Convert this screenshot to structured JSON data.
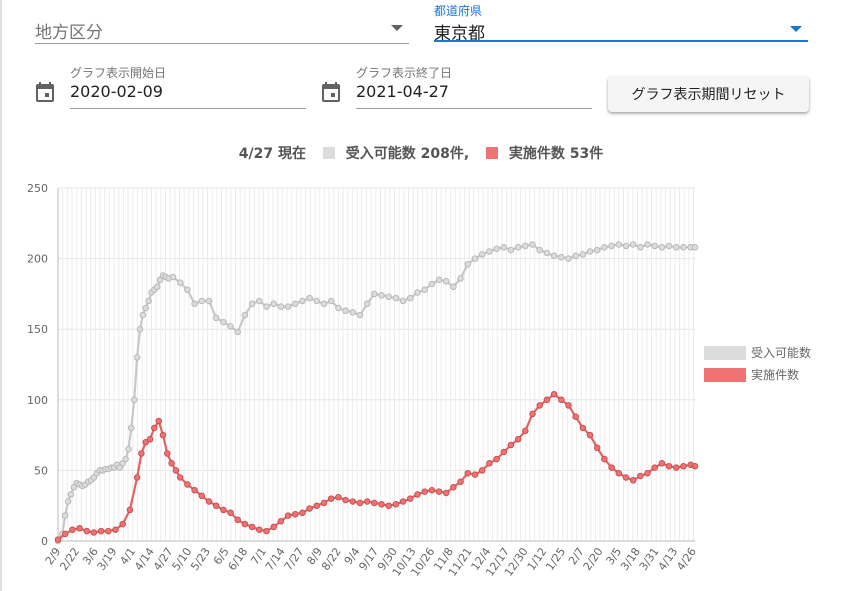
{
  "filters": {
    "region": {
      "placeholder": "地方区分",
      "value": ""
    },
    "prefecture": {
      "label": "都道府県",
      "value": "東京都"
    }
  },
  "date_range": {
    "start": {
      "label": "グラフ表示開始日",
      "value": "2020-02-09"
    },
    "end": {
      "label": "グラフ表示終了日",
      "value": "2021-04-27"
    },
    "reset_label": "グラフ表示期間リセット"
  },
  "icons": {
    "calendar": "calendar-icon",
    "dropdown": "triangle-down-icon"
  },
  "colors": {
    "accent": "#1976d2",
    "capacity": "#dcdcdc",
    "performed": "#ef7373"
  },
  "chart_data": {
    "type": "line",
    "title": {
      "date": "4/27 現在",
      "capacity_text": "受入可能数 208件,",
      "performed_text": "実施件数 53件"
    },
    "xlabel": "",
    "ylabel": "",
    "ylim": [
      0,
      250
    ],
    "yticks": [
      0,
      50,
      100,
      150,
      200,
      250
    ],
    "grid": true,
    "legend_position": "right",
    "x_tick_labels": [
      "2/9",
      "2/22",
      "3/6",
      "3/19",
      "4/1",
      "4/14",
      "4/27",
      "5/10",
      "5/23",
      "6/5",
      "6/18",
      "7/1",
      "7/14",
      "7/27",
      "8/9",
      "8/22",
      "9/4",
      "9/17",
      "9/30",
      "10/13",
      "10/26",
      "11/8",
      "11/21",
      "12/4",
      "12/17",
      "12/30",
      "1/12",
      "1/25",
      "2/7",
      "2/20",
      "3/5",
      "3/18",
      "3/31",
      "4/13",
      "4/26"
    ],
    "series": [
      {
        "name": "受入可能数",
        "color": "#dcdcdc",
        "x": [
          0,
          3,
          5,
          7,
          9,
          11,
          13,
          15,
          17,
          19,
          21,
          23,
          25,
          27,
          29,
          31,
          33,
          35,
          37,
          39,
          41,
          43,
          45,
          47,
          49,
          51,
          53,
          55,
          57,
          59,
          61,
          63,
          65,
          67,
          69,
          71,
          73,
          75,
          77,
          80,
          85,
          90,
          95,
          100,
          105,
          110,
          115,
          120,
          125,
          130,
          135,
          140,
          145,
          150,
          155,
          160,
          165,
          170,
          175,
          180,
          185,
          190,
          195,
          200,
          205,
          210,
          215,
          220,
          225,
          230,
          235,
          240,
          245,
          250,
          255,
          260,
          265,
          270,
          275,
          280,
          285,
          290,
          295,
          300,
          305,
          310,
          315,
          320,
          325,
          330,
          335,
          340,
          345,
          350,
          355,
          360,
          365,
          370,
          375,
          380,
          385,
          390,
          395,
          400,
          405,
          410,
          415,
          420,
          425,
          430,
          435,
          440,
          443
        ],
        "values": [
          0,
          5,
          18,
          28,
          33,
          38,
          41,
          40,
          39,
          40,
          42,
          43,
          45,
          48,
          50,
          50,
          51,
          51,
          52,
          52,
          54,
          52,
          55,
          58,
          65,
          80,
          100,
          130,
          150,
          160,
          165,
          170,
          176,
          178,
          180,
          185,
          188,
          187,
          186,
          187,
          183,
          178,
          168,
          170,
          170,
          158,
          155,
          152,
          148,
          160,
          168,
          170,
          166,
          168,
          166,
          166,
          168,
          170,
          172,
          170,
          168,
          170,
          165,
          163,
          162,
          160,
          168,
          175,
          174,
          173,
          172,
          170,
          172,
          176,
          178,
          182,
          185,
          184,
          180,
          186,
          196,
          200,
          203,
          205,
          207,
          208,
          206,
          208,
          209,
          210,
          206,
          204,
          202,
          201,
          200,
          202,
          203,
          205,
          206,
          208,
          209,
          210,
          209,
          210,
          208,
          210,
          209,
          208,
          209,
          208,
          208,
          208,
          208
        ]
      },
      {
        "name": "実施件数",
        "color": "#ef7373",
        "x": [
          0,
          5,
          10,
          15,
          20,
          25,
          30,
          35,
          40,
          45,
          50,
          55,
          58,
          61,
          64,
          67,
          70,
          73,
          76,
          79,
          82,
          85,
          90,
          95,
          100,
          105,
          110,
          115,
          120,
          125,
          130,
          135,
          140,
          145,
          150,
          155,
          160,
          165,
          170,
          175,
          180,
          185,
          190,
          195,
          200,
          205,
          210,
          215,
          220,
          225,
          230,
          235,
          240,
          245,
          250,
          255,
          260,
          265,
          270,
          275,
          280,
          285,
          290,
          295,
          300,
          305,
          310,
          315,
          320,
          325,
          330,
          335,
          340,
          345,
          350,
          355,
          360,
          365,
          370,
          375,
          380,
          385,
          390,
          395,
          400,
          405,
          410,
          415,
          420,
          425,
          430,
          435,
          440,
          443
        ],
        "values": [
          1,
          5,
          8,
          9,
          7,
          6,
          7,
          7,
          8,
          12,
          22,
          45,
          62,
          70,
          72,
          80,
          85,
          75,
          62,
          55,
          50,
          45,
          40,
          36,
          32,
          28,
          25,
          22,
          20,
          15,
          12,
          10,
          8,
          7,
          10,
          14,
          18,
          19,
          20,
          23,
          25,
          27,
          30,
          31,
          29,
          28,
          27,
          28,
          27,
          26,
          25,
          26,
          28,
          30,
          33,
          35,
          36,
          35,
          34,
          38,
          42,
          48,
          47,
          50,
          55,
          58,
          63,
          68,
          72,
          78,
          90,
          96,
          100,
          104,
          100,
          96,
          88,
          80,
          75,
          66,
          58,
          52,
          48,
          45,
          43,
          46,
          48,
          52,
          55,
          53,
          52,
          53,
          54,
          53
        ]
      }
    ]
  }
}
